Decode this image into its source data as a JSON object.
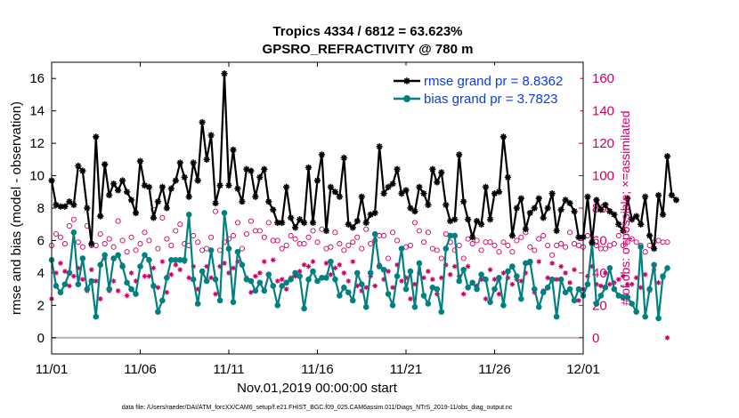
{
  "chart_data": {
    "type": "line",
    "title": "Tropics 4334 / 6812 = 63.623%",
    "subtitle": "GPSRO_REFRACTIVITY @ 780 m",
    "xlabel": "Nov.01,2019 00:00:00 start",
    "ylabel": "rmse and bias (model - observation)",
    "ylabel_right": "# of obs: o=possible; ×=assimilated",
    "footnote": "data file: /Users/raeder/DAI/ATM_forcXX/CAM6_setup/f.e21.FHIST_BGC.f09_025.CAM6assim.011/Diags_NTrS_2019-11/obs_diag_output.nc",
    "xlim": [
      0,
      30
    ],
    "ylim": [
      -1,
      17
    ],
    "ylim_right": [
      -10,
      170
    ],
    "x_ticks": [
      0,
      5,
      10,
      15,
      20,
      25,
      30
    ],
    "x_tick_labels": [
      "11/01",
      "11/06",
      "11/11",
      "11/16",
      "11/21",
      "11/26",
      "12/01"
    ],
    "y_ticks": [
      "0",
      "2",
      "4",
      "6",
      "8",
      "10",
      "12",
      "14",
      "16"
    ],
    "y_ticks_right": [
      "0",
      "20",
      "40",
      "60",
      "80",
      "100",
      "120",
      "140",
      "160"
    ],
    "x_step_days": 0.25,
    "zero_line": 0,
    "legend": [
      {
        "label": "rmse grand pr = 8.8362",
        "color": "#000000",
        "marker": "star"
      },
      {
        "label": "bias grand pr = 3.7823",
        "color": "#008080",
        "marker": "circle"
      }
    ],
    "series": [
      {
        "name": "rmse",
        "axis": "left",
        "color": "#000000",
        "values": [
          9.7,
          8.2,
          8.1,
          8.1,
          8.4,
          8.2,
          10.6,
          10.3,
          8.0,
          5.8,
          12.4,
          7.5,
          10.7,
          8.8,
          9.5,
          9.1,
          9.7,
          9.0,
          8.5,
          7.7,
          10.9,
          9.4,
          9.3,
          7.4,
          8.4,
          9.3,
          8.0,
          9.2,
          9.7,
          10.8,
          9.9,
          8.7,
          10.8,
          9.7,
          13.3,
          11.0,
          12.5,
          8.3,
          9.4,
          16.3,
          9.4,
          11.6,
          9.2,
          8.4,
          10.4,
          10.3,
          8.7,
          9.9,
          10.4,
          8.4,
          7.9,
          7.1,
          7.1,
          9.3,
          7.4,
          6.8,
          7.3,
          7.1,
          10.5,
          7.1,
          9.7,
          11.3,
          6.6,
          9.3,
          9.0,
          8.7,
          11.1,
          7.0,
          6.8,
          7.2,
          8.7,
          7.1,
          7.6,
          7.7,
          11.8,
          8.9,
          9.3,
          9.5,
          10.4,
          8.9,
          9.1,
          8.0,
          7.8,
          9.3,
          8.9,
          8.2,
          10.4,
          9.6,
          10.2,
          8.2,
          7.2,
          7.3,
          11.3,
          8.4,
          7.3,
          6.2,
          7.2,
          7.0,
          9.3,
          7.3,
          8.9,
          9.0,
          12.4,
          9.9,
          6.3,
          8.0,
          8.6,
          6.7,
          7.7,
          8.0,
          8.6,
          7.4,
          8.0,
          8.9,
          6.6,
          7.9,
          8.5,
          8.3,
          7.8,
          6.2,
          6.2,
          8.7,
          5.9,
          8.5,
          7.9,
          8.2,
          7.8,
          7.6,
          7.0,
          6.6,
          8.6,
          7.3,
          7.5,
          7.0,
          8.7,
          6.3,
          5.5,
          8.8,
          7.6,
          11.2,
          8.8,
          8.5
        ]
      },
      {
        "name": "bias",
        "axis": "left",
        "color": "#008080",
        "values": [
          4.8,
          3.2,
          2.8,
          3.3,
          4.0,
          6.5,
          3.3,
          4.9,
          3.0,
          3.5,
          1.3,
          4.5,
          5.1,
          3.0,
          4.9,
          5.1,
          4.4,
          3.4,
          3.0,
          2.7,
          4.4,
          5.1,
          4.8,
          3.2,
          1.6,
          2.3,
          3.7,
          4.8,
          4.8,
          4.8,
          4.8,
          7.6,
          3.6,
          2.1,
          4.1,
          3.5,
          5.4,
          3.6,
          2.3,
          7.7,
          5.5,
          2.2,
          5.3,
          4.5,
          3.6,
          3.5,
          2.9,
          3.4,
          2.9,
          3.9,
          3.2,
          2.0,
          3.2,
          3.4,
          3.6,
          4.0,
          3.8,
          1.8,
          3.6,
          4.1,
          3.5,
          3.7,
          3.7,
          4.7,
          3.6,
          2.6,
          3.1,
          2.8,
          2.3,
          4.0,
          3.3,
          1.9,
          4.0,
          6.4,
          4.4,
          4.2,
          2.7,
          2.0,
          3.8,
          5.5,
          3.0,
          4.1,
          1.9,
          4.6,
          2.6,
          2.1,
          3.1,
          3.0,
          1.6,
          5.5,
          6.3,
          6.3,
          3.5,
          4.2,
          3.1,
          3.4,
          3.0,
          3.9,
          3.6,
          2.2,
          3.0,
          3.7,
          2.0,
          4.1,
          4.4,
          3.8,
          2.4,
          4.6,
          4.7,
          3.0,
          1.9,
          2.8,
          3.1,
          3.6,
          1.3,
          3.6,
          2.8,
          3.0,
          2.3,
          3.0,
          2.6,
          3.3,
          5.8,
          2.1,
          2.6,
          3.1,
          4.3,
          3.0,
          2.6,
          2.5,
          2.5,
          2.1,
          1.6,
          5.6,
          1.3,
          3.0,
          4.5,
          1.2,
          3.8,
          4.3
        ]
      },
      {
        "name": "possible",
        "axis": "right",
        "color": "#cc0066",
        "marker": "circle-open",
        "values": [
          57,
          64,
          62,
          58,
          69,
          73,
          59,
          56,
          69,
          57,
          57,
          64,
          58,
          61,
          56,
          72,
          60,
          53,
          62,
          54,
          58,
          65,
          60,
          79,
          55,
          74,
          61,
          57,
          66,
          70,
          58,
          57,
          63,
          59,
          54,
          55,
          62,
          78,
          54,
          59,
          61,
          63,
          71,
          55,
          64,
          72,
          66,
          66,
          62,
          71,
          60,
          60,
          55,
          57,
          63,
          61,
          58,
          58,
          62,
          66,
          59,
          67,
          55,
          56,
          65,
          58,
          54,
          57,
          59,
          62,
          55,
          67,
          58,
          60,
          63,
          63,
          49,
          65,
          60,
          55,
          56,
          57,
          71,
          66,
          59,
          65,
          55,
          54,
          49,
          64,
          59,
          54,
          57,
          49,
          61,
          58,
          60,
          54,
          59,
          59,
          57,
          53,
          59,
          57,
          53,
          60,
          62,
          65,
          56,
          54,
          61,
          63,
          57,
          51,
          57,
          58,
          56,
          65,
          58,
          57,
          56,
          63,
          58,
          57,
          55,
          55,
          57,
          58,
          63,
          57,
          59,
          61,
          59,
          57,
          53,
          57,
          59,
          60,
          59,
          59
        ]
      },
      {
        "name": "assimilated",
        "axis": "right",
        "color": "#cc0066",
        "marker": "x",
        "values": [
          24,
          40,
          46,
          41,
          32,
          38,
          43,
          36,
          29,
          42,
          35,
          24,
          49,
          29,
          35,
          29,
          45,
          26,
          40,
          35,
          44,
          38,
          38,
          43,
          31,
          47,
          28,
          39,
          45,
          42,
          47,
          37,
          44,
          30,
          41,
          44,
          37,
          27,
          44,
          46,
          40,
          43,
          47,
          45,
          37,
          28,
          38,
          40,
          47,
          39,
          48,
          35,
          36,
          30,
          37,
          38,
          41,
          45,
          44,
          47,
          35,
          37,
          46,
          39,
          43,
          45,
          40,
          35,
          47,
          32,
          29,
          31,
          38,
          32,
          45,
          36,
          41,
          31,
          45,
          35,
          37,
          24,
          33,
          40,
          37,
          41,
          36,
          27,
          37,
          45,
          39,
          44,
          38,
          27,
          44,
          34,
          32,
          36,
          24,
          42,
          36,
          27,
          40,
          37,
          33,
          36,
          35,
          40,
          46,
          28,
          47,
          29,
          37,
          46,
          36,
          44,
          40,
          34,
          42,
          23,
          30,
          38,
          44,
          33,
          32,
          40,
          33,
          34,
          36,
          38,
          33,
          33,
          37,
          31,
          39,
          29,
          42,
          34,
          37,
          0
        ]
      }
    ]
  }
}
